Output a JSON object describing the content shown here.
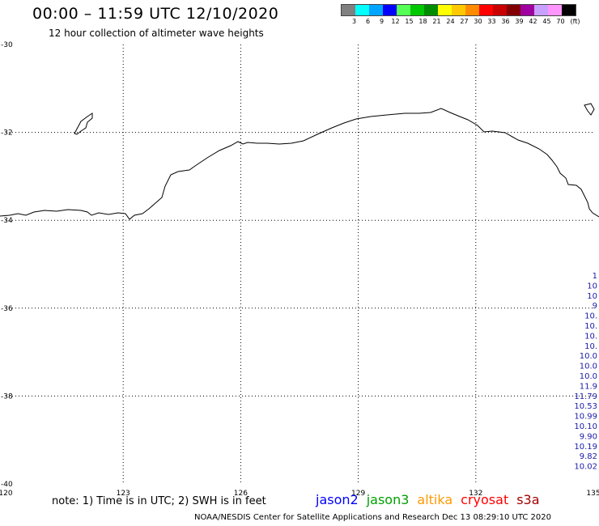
{
  "title": "00:00 – 11:59 UTC 12/10/2020",
  "subtitle": "12 hour collection of altimeter wave heights",
  "scale": {
    "unit": "(ft)",
    "bins": [
      {
        "label": "3",
        "color": "#808080"
      },
      {
        "label": "6",
        "color": "#00ffff"
      },
      {
        "label": "9",
        "color": "#00a5ff"
      },
      {
        "label": "12",
        "color": "#0000ff"
      },
      {
        "label": "15",
        "color": "#55ff55"
      },
      {
        "label": "18",
        "color": "#00c800"
      },
      {
        "label": "21",
        "color": "#008c00"
      },
      {
        "label": "24",
        "color": "#ffff00"
      },
      {
        "label": "27",
        "color": "#ffc800"
      },
      {
        "label": "30",
        "color": "#ff8c00"
      },
      {
        "label": "33",
        "color": "#ff0000"
      },
      {
        "label": "36",
        "color": "#c80000"
      },
      {
        "label": "39",
        "color": "#820000"
      },
      {
        "label": "42",
        "color": "#a000a0"
      },
      {
        "label": "45",
        "color": "#c8a0ff"
      },
      {
        "label": "70",
        "color": "#ff96ff"
      },
      {
        "label": "",
        "color": "#000000"
      }
    ]
  },
  "map": {
    "lon_range": [
      120,
      135
    ],
    "lat_range": [
      -40,
      -30
    ],
    "lon_ticks": [
      "120",
      "123",
      "126",
      "129",
      "132",
      "135"
    ],
    "lat_ticks": [
      "-30",
      "-32",
      "-34",
      "-36",
      "-38",
      "-40"
    ],
    "grid": "dotted"
  },
  "swh_labels": [
    "1",
    "10",
    "10",
    "9",
    "10.",
    "10.",
    "10.",
    "10.",
    "10.0",
    "10.0",
    "10.0",
    "11.9",
    "11.79",
    "10.53",
    "10.99",
    "10.10",
    "9.90",
    "10.19",
    "9.82",
    "10.02"
  ],
  "note": "note: 1) Time is in UTC; 2) SWH is in feet",
  "satellites": [
    {
      "name": "jason2",
      "color": "#0000ff"
    },
    {
      "name": "jason3",
      "color": "#00a000"
    },
    {
      "name": "altika",
      "color": "#ff9900"
    },
    {
      "name": "cryosat",
      "color": "#ff0000"
    },
    {
      "name": "s3a",
      "color": "#a00000"
    }
  ],
  "footer": "NOAA/NESDIS Center for Satellite Applications and Research    Dec 13 08:29:10 UTC 2020"
}
